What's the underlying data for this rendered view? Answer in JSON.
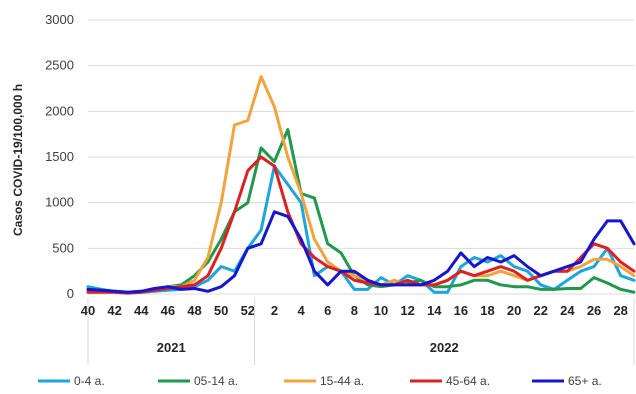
{
  "chart_data": {
    "type": "line",
    "title": "",
    "ylabel": "Casos COVID-19/100,000 h",
    "xlabel": "",
    "ylim": [
      0,
      3000
    ],
    "yticks": [
      0,
      500,
      1000,
      1500,
      2000,
      2500,
      3000
    ],
    "grid": true,
    "legend_position": "bottom",
    "x_weeks": [
      40,
      41,
      42,
      43,
      44,
      45,
      46,
      47,
      48,
      49,
      50,
      51,
      52,
      1,
      2,
      3,
      4,
      5,
      6,
      7,
      8,
      9,
      10,
      11,
      12,
      13,
      14,
      15,
      16,
      17,
      18,
      19,
      20,
      21,
      22,
      23,
      24,
      25,
      26,
      27,
      28,
      29
    ],
    "x_tick_labels": [
      "40",
      "42",
      "44",
      "46",
      "48",
      "50",
      "52",
      "2",
      "4",
      "6",
      "8",
      "10",
      "12",
      "14",
      "16",
      "18",
      "20",
      "22",
      "24",
      "26",
      "28"
    ],
    "year_groups": [
      {
        "label": "2021",
        "from_week_index": 0,
        "to_week_index": 12
      },
      {
        "label": "2022",
        "from_week_index": 13,
        "to_week_index": 41
      }
    ],
    "series": [
      {
        "name": "0-4 a.",
        "color": "#1aa7de",
        "values": [
          80,
          50,
          30,
          20,
          20,
          30,
          40,
          50,
          80,
          150,
          300,
          250,
          500,
          700,
          1400,
          1200,
          1000,
          200,
          300,
          250,
          50,
          50,
          180,
          100,
          200,
          150,
          20,
          20,
          300,
          400,
          350,
          420,
          300,
          250,
          100,
          50,
          150,
          250,
          300,
          500,
          200,
          150
        ]
      },
      {
        "name": "05-14 a.",
        "color": "#1f9a4c",
        "values": [
          30,
          40,
          30,
          20,
          30,
          50,
          80,
          100,
          200,
          350,
          600,
          900,
          1000,
          1600,
          1450,
          1800,
          1100,
          1050,
          550,
          450,
          200,
          100,
          80,
          100,
          120,
          150,
          80,
          80,
          100,
          150,
          150,
          100,
          80,
          80,
          50,
          50,
          60,
          60,
          180,
          120,
          50,
          20
        ]
      },
      {
        "name": "15-44 a.",
        "color": "#f2a33a",
        "values": [
          20,
          30,
          20,
          10,
          30,
          60,
          80,
          80,
          150,
          400,
          1000,
          1850,
          1900,
          2380,
          2050,
          1500,
          1100,
          600,
          350,
          250,
          200,
          150,
          100,
          150,
          100,
          100,
          100,
          150,
          250,
          200,
          200,
          250,
          200,
          150,
          200,
          250,
          250,
          300,
          380,
          380,
          300,
          200
        ]
      },
      {
        "name": "45-64 a.",
        "color": "#e02020",
        "values": [
          20,
          20,
          20,
          10,
          20,
          40,
          60,
          80,
          100,
          200,
          500,
          900,
          1350,
          1500,
          1400,
          900,
          550,
          400,
          300,
          250,
          150,
          120,
          100,
          100,
          150,
          100,
          100,
          150,
          250,
          200,
          250,
          300,
          250,
          150,
          200,
          250,
          250,
          400,
          550,
          500,
          350,
          250
        ]
      },
      {
        "name": "65+ a.",
        "color": "#1515d6",
        "values": [
          50,
          40,
          30,
          20,
          30,
          60,
          80,
          50,
          60,
          30,
          80,
          200,
          500,
          550,
          900,
          850,
          600,
          250,
          100,
          250,
          250,
          150,
          100,
          100,
          100,
          100,
          150,
          250,
          450,
          300,
          400,
          350,
          420,
          300,
          200,
          250,
          300,
          350,
          600,
          800,
          800,
          550
        ]
      }
    ]
  }
}
